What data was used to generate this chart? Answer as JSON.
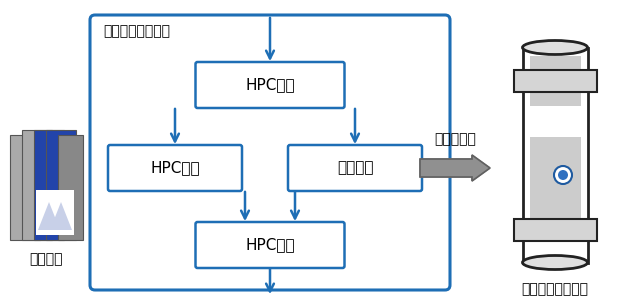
{
  "fig_width": 6.2,
  "fig_height": 3.06,
  "dpi": 100,
  "bg_color": "#ffffff",
  "blue": "#1e6eb5",
  "box_border": "#1e6eb5",
  "arrow_color": "#1e6eb5",
  "offload_arrow_color": "#808080",
  "outer_box_color": "#1e6eb5",
  "label_app": "アプリケーション",
  "label_hpc1": "HPC計算",
  "label_hpc2": "HPC計算",
  "label_qc": "量子計算",
  "label_hpc3": "HPC計算",
  "label_offload": "オフロード",
  "label_supercomp": "スパコン",
  "label_quantum": "量子コンピュータ",
  "font_jp": "IPAexGothic",
  "font_fallback": "sans-serif"
}
